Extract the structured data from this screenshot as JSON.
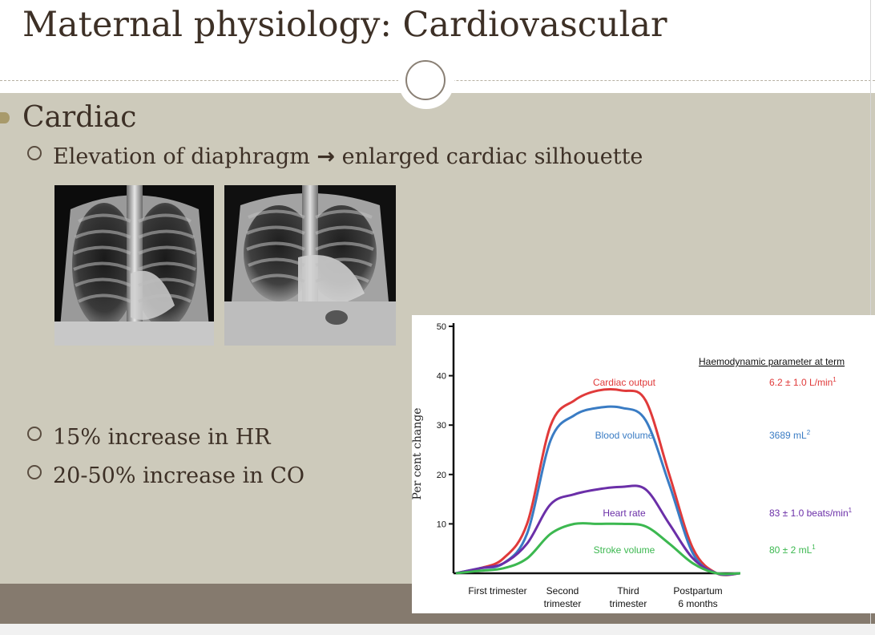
{
  "slide": {
    "title": "Maternal physiology: Cardiovascular",
    "heading": "Cardiac",
    "bullets": [
      {
        "prefix": "Elevation of diaphragm ",
        "arrow": "→",
        "suffix": " enlarged cardiac silhouette"
      },
      {
        "text": "15% increase in HR"
      },
      {
        "text": "20-50% increase in CO"
      }
    ]
  },
  "colors": {
    "cardiac_output": "#e03a3a",
    "blood_volume": "#3a7cc4",
    "heart_rate": "#6b2fa8",
    "stroke_volume": "#3cb850"
  },
  "chart_data": {
    "type": "line",
    "ylabel": "Per cent change",
    "ylim": [
      0,
      50
    ],
    "yticks": [
      "10",
      "20",
      "30",
      "40",
      "50"
    ],
    "x_labels": [
      "First trimester",
      "Second\ntrimester",
      "Third\ntrimester",
      "Postpartum\n6 months"
    ],
    "x": [
      0,
      1,
      2,
      3,
      4,
      5,
      6,
      7,
      8,
      9,
      10,
      11,
      12
    ],
    "series": [
      {
        "name": "Cardiac output",
        "values": [
          0,
          1,
          3,
          10,
          30,
          35,
          37,
          37,
          35,
          20,
          5,
          0,
          0
        ]
      },
      {
        "name": "Blood volume",
        "values": [
          0,
          1,
          2,
          8,
          27,
          32,
          33.5,
          33.5,
          31,
          18,
          4,
          0,
          0
        ]
      },
      {
        "name": "Heart rate",
        "values": [
          0,
          1,
          2,
          6,
          14,
          16,
          17,
          17.5,
          17,
          10,
          3,
          0,
          0
        ]
      },
      {
        "name": "Stroke volume",
        "values": [
          0,
          0.5,
          1,
          3,
          8,
          10,
          10,
          10,
          9.5,
          6,
          2,
          0,
          0
        ]
      }
    ],
    "table_header": "Haemodynamic parameter at term",
    "term_values": [
      {
        "value": "6.2 ± 1.0 L/min",
        "sup": "1"
      },
      {
        "value": "3689 mL",
        "sup": "2"
      },
      {
        "value": "83 ± 1.0 beats/min",
        "sup": "1"
      },
      {
        "value": "80 ± 2 mL",
        "sup": "1"
      }
    ]
  }
}
